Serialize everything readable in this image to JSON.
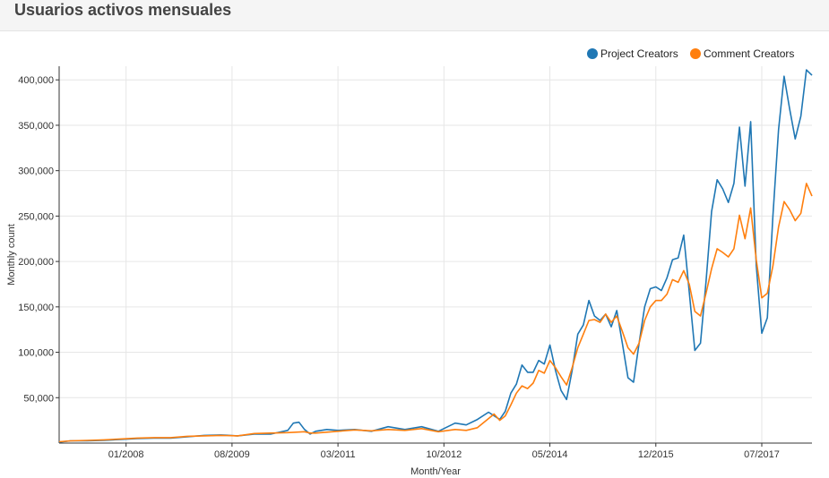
{
  "page": {
    "title": "Usuarios activos mensuales"
  },
  "chart_data": {
    "type": "line",
    "xlabel": "Month/Year",
    "ylabel": "Monthly count",
    "x_domain": [
      "2007-01",
      "2018-04"
    ],
    "ylim": [
      0,
      415000
    ],
    "y_ticks": [
      50000,
      100000,
      150000,
      200000,
      250000,
      300000,
      350000,
      400000
    ],
    "y_tick_labels": [
      "50,000",
      "100,000",
      "150,000",
      "200,000",
      "250,000",
      "300,000",
      "350,000",
      "400,000"
    ],
    "x_ticks": [
      "2008-01",
      "2009-08",
      "2011-03",
      "2012-10",
      "2014-05",
      "2015-12",
      "2017-07"
    ],
    "x_tick_labels": [
      "01/2008",
      "08/2009",
      "03/2011",
      "10/2012",
      "05/2014",
      "12/2015",
      "07/2017"
    ],
    "grid": true,
    "legend_position": "top-right",
    "series": [
      {
        "name": "Project Creators",
        "color": "#1f77b4",
        "points": [
          [
            "2007-01",
            1000
          ],
          [
            "2007-03",
            2500
          ],
          [
            "2007-06",
            2500
          ],
          [
            "2007-09",
            3000
          ],
          [
            "2007-12",
            4000
          ],
          [
            "2008-03",
            5000
          ],
          [
            "2008-06",
            5500
          ],
          [
            "2008-09",
            5500
          ],
          [
            "2008-12",
            7000
          ],
          [
            "2009-03",
            8500
          ],
          [
            "2009-06",
            9000
          ],
          [
            "2009-09",
            8000
          ],
          [
            "2009-12",
            10000
          ],
          [
            "2010-03",
            10000
          ],
          [
            "2010-06",
            14000
          ],
          [
            "2010-07",
            22000
          ],
          [
            "2010-08",
            23000
          ],
          [
            "2010-09",
            15000
          ],
          [
            "2010-10",
            10000
          ],
          [
            "2010-11",
            13000
          ],
          [
            "2011-01",
            15000
          ],
          [
            "2011-03",
            14000
          ],
          [
            "2011-06",
            15000
          ],
          [
            "2011-09",
            13000
          ],
          [
            "2011-12",
            18000
          ],
          [
            "2012-03",
            15000
          ],
          [
            "2012-06",
            18000
          ],
          [
            "2012-09",
            13000
          ],
          [
            "2012-12",
            22000
          ],
          [
            "2013-02",
            20000
          ],
          [
            "2013-04",
            26000
          ],
          [
            "2013-06",
            34000
          ],
          [
            "2013-08",
            26000
          ],
          [
            "2013-09",
            35000
          ],
          [
            "2013-10",
            55000
          ],
          [
            "2013-11",
            65000
          ],
          [
            "2013-12",
            86000
          ],
          [
            "2014-01",
            78000
          ],
          [
            "2014-02",
            78000
          ],
          [
            "2014-03",
            91000
          ],
          [
            "2014-04",
            87000
          ],
          [
            "2014-05",
            108000
          ],
          [
            "2014-06",
            80000
          ],
          [
            "2014-07",
            58000
          ],
          [
            "2014-08",
            48000
          ],
          [
            "2014-09",
            80000
          ],
          [
            "2014-10",
            120000
          ],
          [
            "2014-11",
            130000
          ],
          [
            "2014-12",
            157000
          ],
          [
            "2015-01",
            140000
          ],
          [
            "2015-02",
            135000
          ],
          [
            "2015-03",
            142000
          ],
          [
            "2015-04",
            128000
          ],
          [
            "2015-05",
            146000
          ],
          [
            "2015-06",
            110000
          ],
          [
            "2015-07",
            72000
          ],
          [
            "2015-08",
            67000
          ],
          [
            "2015-09",
            110000
          ],
          [
            "2015-10",
            150000
          ],
          [
            "2015-11",
            170000
          ],
          [
            "2015-12",
            172000
          ],
          [
            "2016-01",
            168000
          ],
          [
            "2016-02",
            182000
          ],
          [
            "2016-03",
            202000
          ],
          [
            "2016-04",
            204000
          ],
          [
            "2016-05",
            229000
          ],
          [
            "2016-06",
            166000
          ],
          [
            "2016-07",
            102000
          ],
          [
            "2016-08",
            110000
          ],
          [
            "2016-09",
            178000
          ],
          [
            "2016-10",
            255000
          ],
          [
            "2016-11",
            290000
          ],
          [
            "2016-12",
            280000
          ],
          [
            "2017-01",
            265000
          ],
          [
            "2017-02",
            286000
          ],
          [
            "2017-03",
            348000
          ],
          [
            "2017-04",
            283000
          ],
          [
            "2017-05",
            354000
          ],
          [
            "2017-06",
            196000
          ],
          [
            "2017-07",
            121000
          ],
          [
            "2017-08",
            138000
          ],
          [
            "2017-09",
            250000
          ],
          [
            "2017-10",
            345000
          ],
          [
            "2017-11",
            404000
          ],
          [
            "2017-12",
            368000
          ],
          [
            "2018-01",
            335000
          ],
          [
            "2018-02",
            360000
          ],
          [
            "2018-03",
            411000
          ],
          [
            "2018-04",
            405000
          ]
        ]
      },
      {
        "name": "Comment Creators",
        "color": "#ff7f0e",
        "points": [
          [
            "2007-01",
            1500
          ],
          [
            "2007-03",
            2500
          ],
          [
            "2007-06",
            3000
          ],
          [
            "2007-09",
            3500
          ],
          [
            "2007-12",
            4500
          ],
          [
            "2008-03",
            5500
          ],
          [
            "2008-06",
            6000
          ],
          [
            "2008-09",
            6000
          ],
          [
            "2008-12",
            7500
          ],
          [
            "2009-03",
            8000
          ],
          [
            "2009-06",
            8500
          ],
          [
            "2009-09",
            8000
          ],
          [
            "2009-12",
            10500
          ],
          [
            "2010-03",
            11000
          ],
          [
            "2010-06",
            11500
          ],
          [
            "2010-09",
            12500
          ],
          [
            "2010-10",
            11000
          ],
          [
            "2010-11",
            11000
          ],
          [
            "2011-01",
            12000
          ],
          [
            "2011-03",
            13000
          ],
          [
            "2011-06",
            14500
          ],
          [
            "2011-09",
            13500
          ],
          [
            "2011-12",
            15000
          ],
          [
            "2012-03",
            14000
          ],
          [
            "2012-06",
            16000
          ],
          [
            "2012-09",
            12500
          ],
          [
            "2012-12",
            15000
          ],
          [
            "2013-02",
            14000
          ],
          [
            "2013-04",
            17000
          ],
          [
            "2013-06",
            27000
          ],
          [
            "2013-07",
            32000
          ],
          [
            "2013-08",
            25000
          ],
          [
            "2013-09",
            30000
          ],
          [
            "2013-10",
            42000
          ],
          [
            "2013-11",
            55000
          ],
          [
            "2013-12",
            63000
          ],
          [
            "2014-01",
            60000
          ],
          [
            "2014-02",
            66000
          ],
          [
            "2014-03",
            80000
          ],
          [
            "2014-04",
            77000
          ],
          [
            "2014-05",
            91000
          ],
          [
            "2014-06",
            83000
          ],
          [
            "2014-07",
            73000
          ],
          [
            "2014-08",
            64000
          ],
          [
            "2014-09",
            83000
          ],
          [
            "2014-10",
            105000
          ],
          [
            "2014-11",
            120000
          ],
          [
            "2014-12",
            135000
          ],
          [
            "2015-01",
            136000
          ],
          [
            "2015-02",
            133000
          ],
          [
            "2015-03",
            142000
          ],
          [
            "2015-04",
            133000
          ],
          [
            "2015-05",
            140000
          ],
          [
            "2015-06",
            123000
          ],
          [
            "2015-07",
            105000
          ],
          [
            "2015-08",
            98000
          ],
          [
            "2015-09",
            110000
          ],
          [
            "2015-10",
            135000
          ],
          [
            "2015-11",
            150000
          ],
          [
            "2015-12",
            157000
          ],
          [
            "2016-01",
            157000
          ],
          [
            "2016-02",
            164000
          ],
          [
            "2016-03",
            180000
          ],
          [
            "2016-04",
            177000
          ],
          [
            "2016-05",
            190000
          ],
          [
            "2016-06",
            175000
          ],
          [
            "2016-07",
            145000
          ],
          [
            "2016-08",
            140000
          ],
          [
            "2016-09",
            165000
          ],
          [
            "2016-10",
            192000
          ],
          [
            "2016-11",
            214000
          ],
          [
            "2016-12",
            210000
          ],
          [
            "2017-01",
            205000
          ],
          [
            "2017-02",
            214000
          ],
          [
            "2017-03",
            251000
          ],
          [
            "2017-04",
            225000
          ],
          [
            "2017-05",
            259000
          ],
          [
            "2017-06",
            202000
          ],
          [
            "2017-07",
            160000
          ],
          [
            "2017-08",
            165000
          ],
          [
            "2017-09",
            195000
          ],
          [
            "2017-10",
            238000
          ],
          [
            "2017-11",
            266000
          ],
          [
            "2017-12",
            257000
          ],
          [
            "2018-01",
            245000
          ],
          [
            "2018-02",
            253000
          ],
          [
            "2018-03",
            286000
          ],
          [
            "2018-04",
            272000
          ]
        ]
      }
    ]
  }
}
